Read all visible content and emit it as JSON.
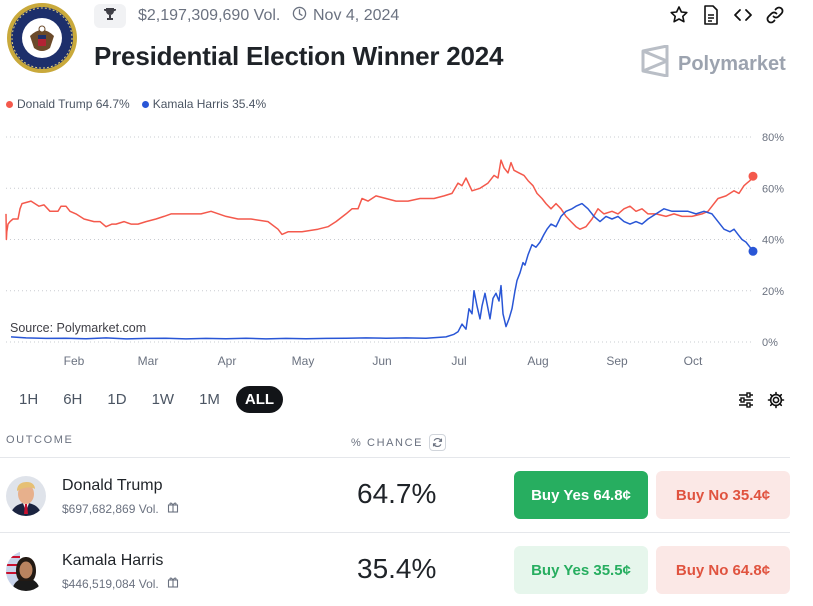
{
  "market": {
    "volume": "$2,197,309,690 Vol.",
    "date": "Nov 4, 2024",
    "title": "Presidential Election Winner 2024",
    "brand": "Polymarket"
  },
  "legend": [
    {
      "label": "Donald Trump 64.7%",
      "color": "#f4594c"
    },
    {
      "label": "Kamala Harris 35.4%",
      "color": "#2956d6"
    }
  ],
  "chart_data": {
    "type": "line",
    "xlabels": [
      "Feb",
      "Mar",
      "Apr",
      "May",
      "Jun",
      "Jul",
      "Aug",
      "Sep",
      "Oct"
    ],
    "yticks": [
      "80%",
      "60%",
      "40%",
      "20%",
      "0%"
    ],
    "ylim": [
      0,
      80
    ],
    "grid": "horizontal-dotted",
    "source_label": "Source: Polymarket.com",
    "series": [
      {
        "name": "Donald Trump",
        "color": "#f4594c",
        "points": [
          [
            0,
            50
          ],
          [
            0.4,
            40
          ],
          [
            0.8,
            43
          ],
          [
            2,
            46
          ],
          [
            4,
            47
          ],
          [
            7,
            48
          ],
          [
            12,
            48
          ],
          [
            14,
            52
          ],
          [
            16,
            54
          ],
          [
            25,
            55
          ],
          [
            33,
            53
          ],
          [
            38,
            53.5
          ],
          [
            44,
            51
          ],
          [
            52,
            51
          ],
          [
            55,
            53
          ],
          [
            60,
            53
          ],
          [
            64,
            51
          ],
          [
            70,
            50
          ],
          [
            78,
            48
          ],
          [
            88,
            47
          ],
          [
            94,
            47
          ],
          [
            100,
            45
          ],
          [
            106,
            46
          ],
          [
            110,
            46
          ],
          [
            118,
            47
          ],
          [
            125,
            46
          ],
          [
            132,
            46
          ],
          [
            140,
            47
          ],
          [
            150,
            48
          ],
          [
            158,
            49
          ],
          [
            165,
            50
          ],
          [
            180,
            50
          ],
          [
            195,
            50
          ],
          [
            205,
            51
          ],
          [
            220,
            49
          ],
          [
            232,
            48
          ],
          [
            245,
            48
          ],
          [
            262,
            47
          ],
          [
            272,
            44
          ],
          [
            276,
            42
          ],
          [
            282,
            43
          ],
          [
            296,
            43
          ],
          [
            312,
            44
          ],
          [
            322,
            45
          ],
          [
            330,
            47
          ],
          [
            340,
            50
          ],
          [
            346,
            52
          ],
          [
            352,
            52
          ],
          [
            356,
            56
          ],
          [
            362,
            55
          ],
          [
            370,
            57
          ],
          [
            380,
            56
          ],
          [
            390,
            55
          ],
          [
            402,
            55
          ],
          [
            414,
            56
          ],
          [
            428,
            56
          ],
          [
            438,
            57
          ],
          [
            446,
            58
          ],
          [
            452,
            62
          ],
          [
            456,
            61
          ],
          [
            460,
            64
          ],
          [
            466,
            59
          ],
          [
            474,
            60
          ],
          [
            482,
            62
          ],
          [
            488,
            65
          ],
          [
            492,
            64
          ],
          [
            495,
            71
          ],
          [
            498,
            68
          ],
          [
            502,
            66
          ],
          [
            505,
            70
          ],
          [
            508,
            67
          ],
          [
            513,
            66
          ],
          [
            518,
            65
          ],
          [
            522,
            63
          ],
          [
            527,
            61
          ],
          [
            531,
            58
          ],
          [
            536,
            56
          ],
          [
            540,
            54
          ],
          [
            545,
            52
          ],
          [
            550,
            54
          ],
          [
            555,
            52
          ],
          [
            560,
            49
          ],
          [
            565,
            47
          ],
          [
            570,
            45
          ],
          [
            574,
            44
          ],
          [
            580,
            45
          ],
          [
            586,
            48
          ],
          [
            592,
            52
          ],
          [
            598,
            50
          ],
          [
            606,
            51
          ],
          [
            612,
            50
          ],
          [
            618,
            52
          ],
          [
            624,
            53
          ],
          [
            630,
            51
          ],
          [
            636,
            52
          ],
          [
            642,
            50
          ],
          [
            650,
            50
          ],
          [
            660,
            49
          ],
          [
            668,
            50
          ],
          [
            676,
            49
          ],
          [
            686,
            49
          ],
          [
            696,
            50
          ],
          [
            702,
            51
          ],
          [
            706,
            53
          ],
          [
            712,
            56
          ],
          [
            720,
            57
          ],
          [
            728,
            59
          ],
          [
            733,
            58
          ],
          [
            738,
            61
          ],
          [
            741,
            62
          ],
          [
            744,
            63
          ],
          [
            747,
            64.7
          ]
        ]
      },
      {
        "name": "Kamala Harris",
        "color": "#2956d6",
        "points": [
          [
            5,
            2
          ],
          [
            20,
            1.6
          ],
          [
            40,
            1.4
          ],
          [
            60,
            1.5
          ],
          [
            80,
            1.3
          ],
          [
            100,
            1.6
          ],
          [
            120,
            1.2
          ],
          [
            140,
            1.4
          ],
          [
            160,
            1.5
          ],
          [
            180,
            1.2
          ],
          [
            200,
            1.4
          ],
          [
            220,
            1.3
          ],
          [
            240,
            1.5
          ],
          [
            260,
            1.2
          ],
          [
            280,
            1.4
          ],
          [
            300,
            1.3
          ],
          [
            320,
            1.4
          ],
          [
            340,
            1.5
          ],
          [
            360,
            1.6
          ],
          [
            380,
            1.5
          ],
          [
            400,
            1.6
          ],
          [
            420,
            1.5
          ],
          [
            440,
            2
          ],
          [
            448,
            3
          ],
          [
            452,
            4
          ],
          [
            456,
            7
          ],
          [
            460,
            5
          ],
          [
            463,
            13
          ],
          [
            466,
            11
          ],
          [
            468,
            20
          ],
          [
            471,
            14
          ],
          [
            474,
            9
          ],
          [
            476,
            14
          ],
          [
            479,
            19
          ],
          [
            482,
            13
          ],
          [
            484,
            9
          ],
          [
            487,
            17
          ],
          [
            490,
            19
          ],
          [
            493,
            16
          ],
          [
            495,
            22
          ],
          [
            497,
            11
          ],
          [
            500,
            6
          ],
          [
            503,
            9
          ],
          [
            506,
            13
          ],
          [
            509,
            20
          ],
          [
            511,
            24
          ],
          [
            514,
            27
          ],
          [
            517,
            31
          ],
          [
            519,
            30
          ],
          [
            522,
            34
          ],
          [
            526,
            38
          ],
          [
            530,
            37
          ],
          [
            534,
            39
          ],
          [
            538,
            42
          ],
          [
            541,
            44
          ],
          [
            545,
            46
          ],
          [
            550,
            45
          ],
          [
            555,
            49
          ],
          [
            560,
            51
          ],
          [
            566,
            52
          ],
          [
            570,
            53
          ],
          [
            576,
            54
          ],
          [
            582,
            52
          ],
          [
            588,
            49
          ],
          [
            594,
            47
          ],
          [
            600,
            49
          ],
          [
            606,
            48
          ],
          [
            612,
            49
          ],
          [
            618,
            47
          ],
          [
            624,
            46
          ],
          [
            630,
            47
          ],
          [
            636,
            46
          ],
          [
            642,
            48
          ],
          [
            650,
            50
          ],
          [
            658,
            52
          ],
          [
            666,
            51
          ],
          [
            674,
            51
          ],
          [
            682,
            51
          ],
          [
            690,
            50
          ],
          [
            698,
            51
          ],
          [
            706,
            50
          ],
          [
            712,
            47
          ],
          [
            718,
            44
          ],
          [
            724,
            43
          ],
          [
            728,
            44
          ],
          [
            732,
            42
          ],
          [
            736,
            40
          ],
          [
            740,
            39
          ],
          [
            744,
            37
          ],
          [
            747,
            35.4
          ]
        ]
      }
    ]
  },
  "ranges": [
    "1H",
    "6H",
    "1D",
    "1W",
    "1M",
    "ALL"
  ],
  "table": {
    "outcome_header": "OUTCOME",
    "chance_header": "% CHANCE",
    "rows": [
      {
        "name": "Donald Trump",
        "volume": "$697,682,869 Vol.",
        "chance": "64.7%",
        "buy_yes": "Buy Yes 64.8¢",
        "buy_no": "Buy No 35.4¢"
      },
      {
        "name": "Kamala Harris",
        "volume": "$446,519,084 Vol.",
        "chance": "35.4%",
        "buy_yes": "Buy Yes 35.5¢",
        "buy_no": "Buy No 64.8¢"
      }
    ]
  },
  "icons": [
    "trophy-icon",
    "clock-icon",
    "star-icon",
    "document-icon",
    "code-icon",
    "link-icon",
    "sliders-icon",
    "gear-icon",
    "gift-icon",
    "refresh-icon"
  ]
}
